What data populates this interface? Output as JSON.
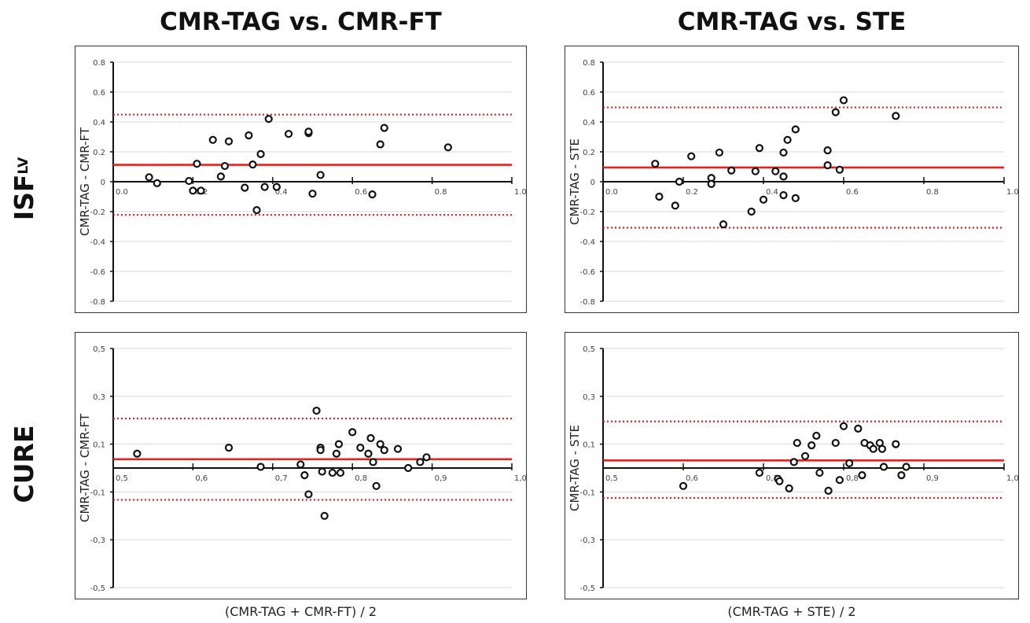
{
  "column_titles": [
    "CMR-TAG vs. CMR-FT",
    "CMR-TAG vs. STE"
  ],
  "row_titles": [
    {
      "main": "ISF",
      "sub": "LV"
    },
    {
      "main": "CURE",
      "sub": ""
    }
  ],
  "x_axis_titles": [
    "(CMR-TAG + CMR-FT) / 2",
    "(CMR-TAG + STE) / 2"
  ],
  "colors": {
    "mean_line": "#e8211f",
    "loa_line": "#e8211f",
    "points": "#111111",
    "axis": "#111111",
    "grid": "#d9d9d9"
  },
  "chart_data": [
    {
      "type": "scatter",
      "title": "",
      "xlabel": "(CMR-TAG + CMR-FT) / 2",
      "ylabel": "CMR-TAG - CMR-FT",
      "xlim": [
        0.0,
        1.0
      ],
      "ylim": [
        -0.8,
        0.8
      ],
      "xticks": [
        "0.0",
        "0.2",
        "0.4",
        "0.6",
        "0.8",
        "1.0"
      ],
      "yticks": [
        "0.8",
        "0.6",
        "0.4",
        "0.2",
        "0",
        "-0.2",
        "-0.4",
        "-0.6",
        "-0.8"
      ],
      "ytick_values": [
        0.8,
        0.6,
        0.4,
        0.2,
        0,
        -0.2,
        -0.4,
        -0.6,
        -0.8
      ],
      "xtick_values": [
        0.0,
        0.2,
        0.4,
        0.6,
        0.8,
        1.0
      ],
      "grid": true,
      "bias": 0.113,
      "loa_upper": 0.449,
      "loa_lower": -0.222,
      "points": [
        [
          0.09,
          0.03
        ],
        [
          0.11,
          -0.01
        ],
        [
          0.19,
          0.005
        ],
        [
          0.2,
          -0.06
        ],
        [
          0.21,
          0.12
        ],
        [
          0.22,
          -0.06
        ],
        [
          0.25,
          0.28
        ],
        [
          0.27,
          0.035
        ],
        [
          0.28,
          0.105
        ],
        [
          0.29,
          0.27
        ],
        [
          0.33,
          -0.04
        ],
        [
          0.34,
          0.31
        ],
        [
          0.35,
          0.115
        ],
        [
          0.36,
          -0.19
        ],
        [
          0.37,
          0.185
        ],
        [
          0.38,
          -0.035
        ],
        [
          0.39,
          0.42
        ],
        [
          0.41,
          -0.035
        ],
        [
          0.44,
          0.32
        ],
        [
          0.49,
          0.325
        ],
        [
          0.49,
          0.335
        ],
        [
          0.5,
          -0.08
        ],
        [
          0.52,
          0.045
        ],
        [
          0.65,
          -0.085
        ],
        [
          0.67,
          0.25
        ],
        [
          0.68,
          0.36
        ],
        [
          0.84,
          0.23
        ]
      ]
    },
    {
      "type": "scatter",
      "title": "",
      "xlabel": "(CMR-TAG + STE) / 2",
      "ylabel": "CMR-TAG - STE",
      "xlim": [
        0.0,
        1.0
      ],
      "ylim": [
        -0.8,
        0.8
      ],
      "xticks": [
        "0.0",
        "0.2",
        "0.4",
        "0.6",
        "0.8",
        "1.0"
      ],
      "yticks": [
        "0.8",
        "0.6",
        "0.4",
        "0.2",
        "0",
        "-0.2",
        "-0.4",
        "-0.6",
        "-0.8"
      ],
      "ytick_values": [
        0.8,
        0.6,
        0.4,
        0.2,
        0,
        -0.2,
        -0.4,
        -0.6,
        -0.8
      ],
      "xtick_values": [
        0.0,
        0.2,
        0.4,
        0.6,
        0.8,
        1.0
      ],
      "grid": true,
      "bias": 0.095,
      "loa_upper": 0.497,
      "loa_lower": -0.308,
      "points": [
        [
          0.13,
          0.12
        ],
        [
          0.14,
          -0.1
        ],
        [
          0.18,
          -0.16
        ],
        [
          0.19,
          0.0
        ],
        [
          0.22,
          0.17
        ],
        [
          0.27,
          0.025
        ],
        [
          0.27,
          -0.015
        ],
        [
          0.29,
          0.195
        ],
        [
          0.3,
          -0.285
        ],
        [
          0.32,
          0.075
        ],
        [
          0.37,
          -0.2
        ],
        [
          0.38,
          0.07
        ],
        [
          0.39,
          0.225
        ],
        [
          0.4,
          -0.12
        ],
        [
          0.43,
          0.07
        ],
        [
          0.45,
          0.035
        ],
        [
          0.45,
          0.195
        ],
        [
          0.45,
          -0.09
        ],
        [
          0.46,
          0.28
        ],
        [
          0.48,
          0.35
        ],
        [
          0.48,
          -0.11
        ],
        [
          0.56,
          0.21
        ],
        [
          0.56,
          0.11
        ],
        [
          0.58,
          0.465
        ],
        [
          0.59,
          0.08
        ],
        [
          0.6,
          0.545
        ],
        [
          0.73,
          0.44
        ]
      ]
    },
    {
      "type": "scatter",
      "title": "",
      "xlabel": "(CMR-TAG + CMR-FT) / 2",
      "ylabel": "CMR-TAG - CMR-FT",
      "xlim": [
        0.5,
        1.0
      ],
      "ylim": [
        -0.5,
        0.5
      ],
      "xticks": [
        "0,5",
        "0,6",
        "0,7",
        "0,8",
        "0,9",
        "1,0"
      ],
      "yticks": [
        "0,5",
        "0,3",
        "0,1",
        "-0,1",
        "-0,3",
        "-0,5"
      ],
      "ytick_values": [
        0.5,
        0.3,
        0.1,
        -0.1,
        -0.3,
        -0.5
      ],
      "xtick_values": [
        0.5,
        0.6,
        0.7,
        0.8,
        0.9,
        1.0
      ],
      "grid": true,
      "bias": 0.037,
      "loa_upper": 0.207,
      "loa_lower": -0.133,
      "points": [
        [
          0.53,
          0.06
        ],
        [
          0.645,
          0.085
        ],
        [
          0.685,
          0.005
        ],
        [
          0.735,
          0.015
        ],
        [
          0.74,
          -0.03
        ],
        [
          0.745,
          -0.11
        ],
        [
          0.755,
          0.24
        ],
        [
          0.76,
          0.085
        ],
        [
          0.76,
          0.075
        ],
        [
          0.762,
          -0.015
        ],
        [
          0.765,
          -0.2
        ],
        [
          0.775,
          -0.02
        ],
        [
          0.78,
          0.06
        ],
        [
          0.783,
          0.1
        ],
        [
          0.785,
          -0.02
        ],
        [
          0.8,
          0.15
        ],
        [
          0.81,
          0.085
        ],
        [
          0.82,
          0.06
        ],
        [
          0.823,
          0.125
        ],
        [
          0.826,
          0.025
        ],
        [
          0.83,
          -0.075
        ],
        [
          0.835,
          0.1
        ],
        [
          0.84,
          0.075
        ],
        [
          0.857,
          0.08
        ],
        [
          0.87,
          0.0
        ],
        [
          0.885,
          0.025
        ],
        [
          0.893,
          0.045
        ]
      ]
    },
    {
      "type": "scatter",
      "title": "",
      "xlabel": "(CMR-TAG + STE) / 2",
      "ylabel": "CMR-TAG - STE",
      "xlim": [
        0.5,
        1.0
      ],
      "ylim": [
        -0.5,
        0.5
      ],
      "xticks": [
        "0,5",
        "0,6",
        "0,7",
        "0,8",
        "0,9",
        "1,0"
      ],
      "yticks": [
        "0,5",
        "0,3",
        "0,1",
        "-0,1",
        "-0,3",
        "-0,5"
      ],
      "ytick_values": [
        0.5,
        0.3,
        0.1,
        -0.1,
        -0.3,
        -0.5
      ],
      "xtick_values": [
        0.5,
        0.6,
        0.7,
        0.8,
        0.9,
        1.0
      ],
      "grid": true,
      "bias": 0.032,
      "loa_upper": 0.195,
      "loa_lower": -0.125,
      "points": [
        [
          0.6,
          -0.075
        ],
        [
          0.695,
          -0.02
        ],
        [
          0.718,
          -0.045
        ],
        [
          0.72,
          -0.055
        ],
        [
          0.732,
          -0.085
        ],
        [
          0.738,
          0.025
        ],
        [
          0.742,
          0.105
        ],
        [
          0.752,
          0.05
        ],
        [
          0.76,
          0.095
        ],
        [
          0.766,
          0.135
        ],
        [
          0.77,
          -0.02
        ],
        [
          0.781,
          -0.095
        ],
        [
          0.79,
          0.105
        ],
        [
          0.795,
          -0.05
        ],
        [
          0.8,
          0.175
        ],
        [
          0.807,
          0.02
        ],
        [
          0.818,
          0.165
        ],
        [
          0.823,
          -0.03
        ],
        [
          0.826,
          0.105
        ],
        [
          0.833,
          0.095
        ],
        [
          0.837,
          0.08
        ],
        [
          0.845,
          0.105
        ],
        [
          0.848,
          0.08
        ],
        [
          0.85,
          0.005
        ],
        [
          0.865,
          0.1
        ],
        [
          0.872,
          -0.03
        ],
        [
          0.878,
          0.005
        ]
      ]
    }
  ]
}
